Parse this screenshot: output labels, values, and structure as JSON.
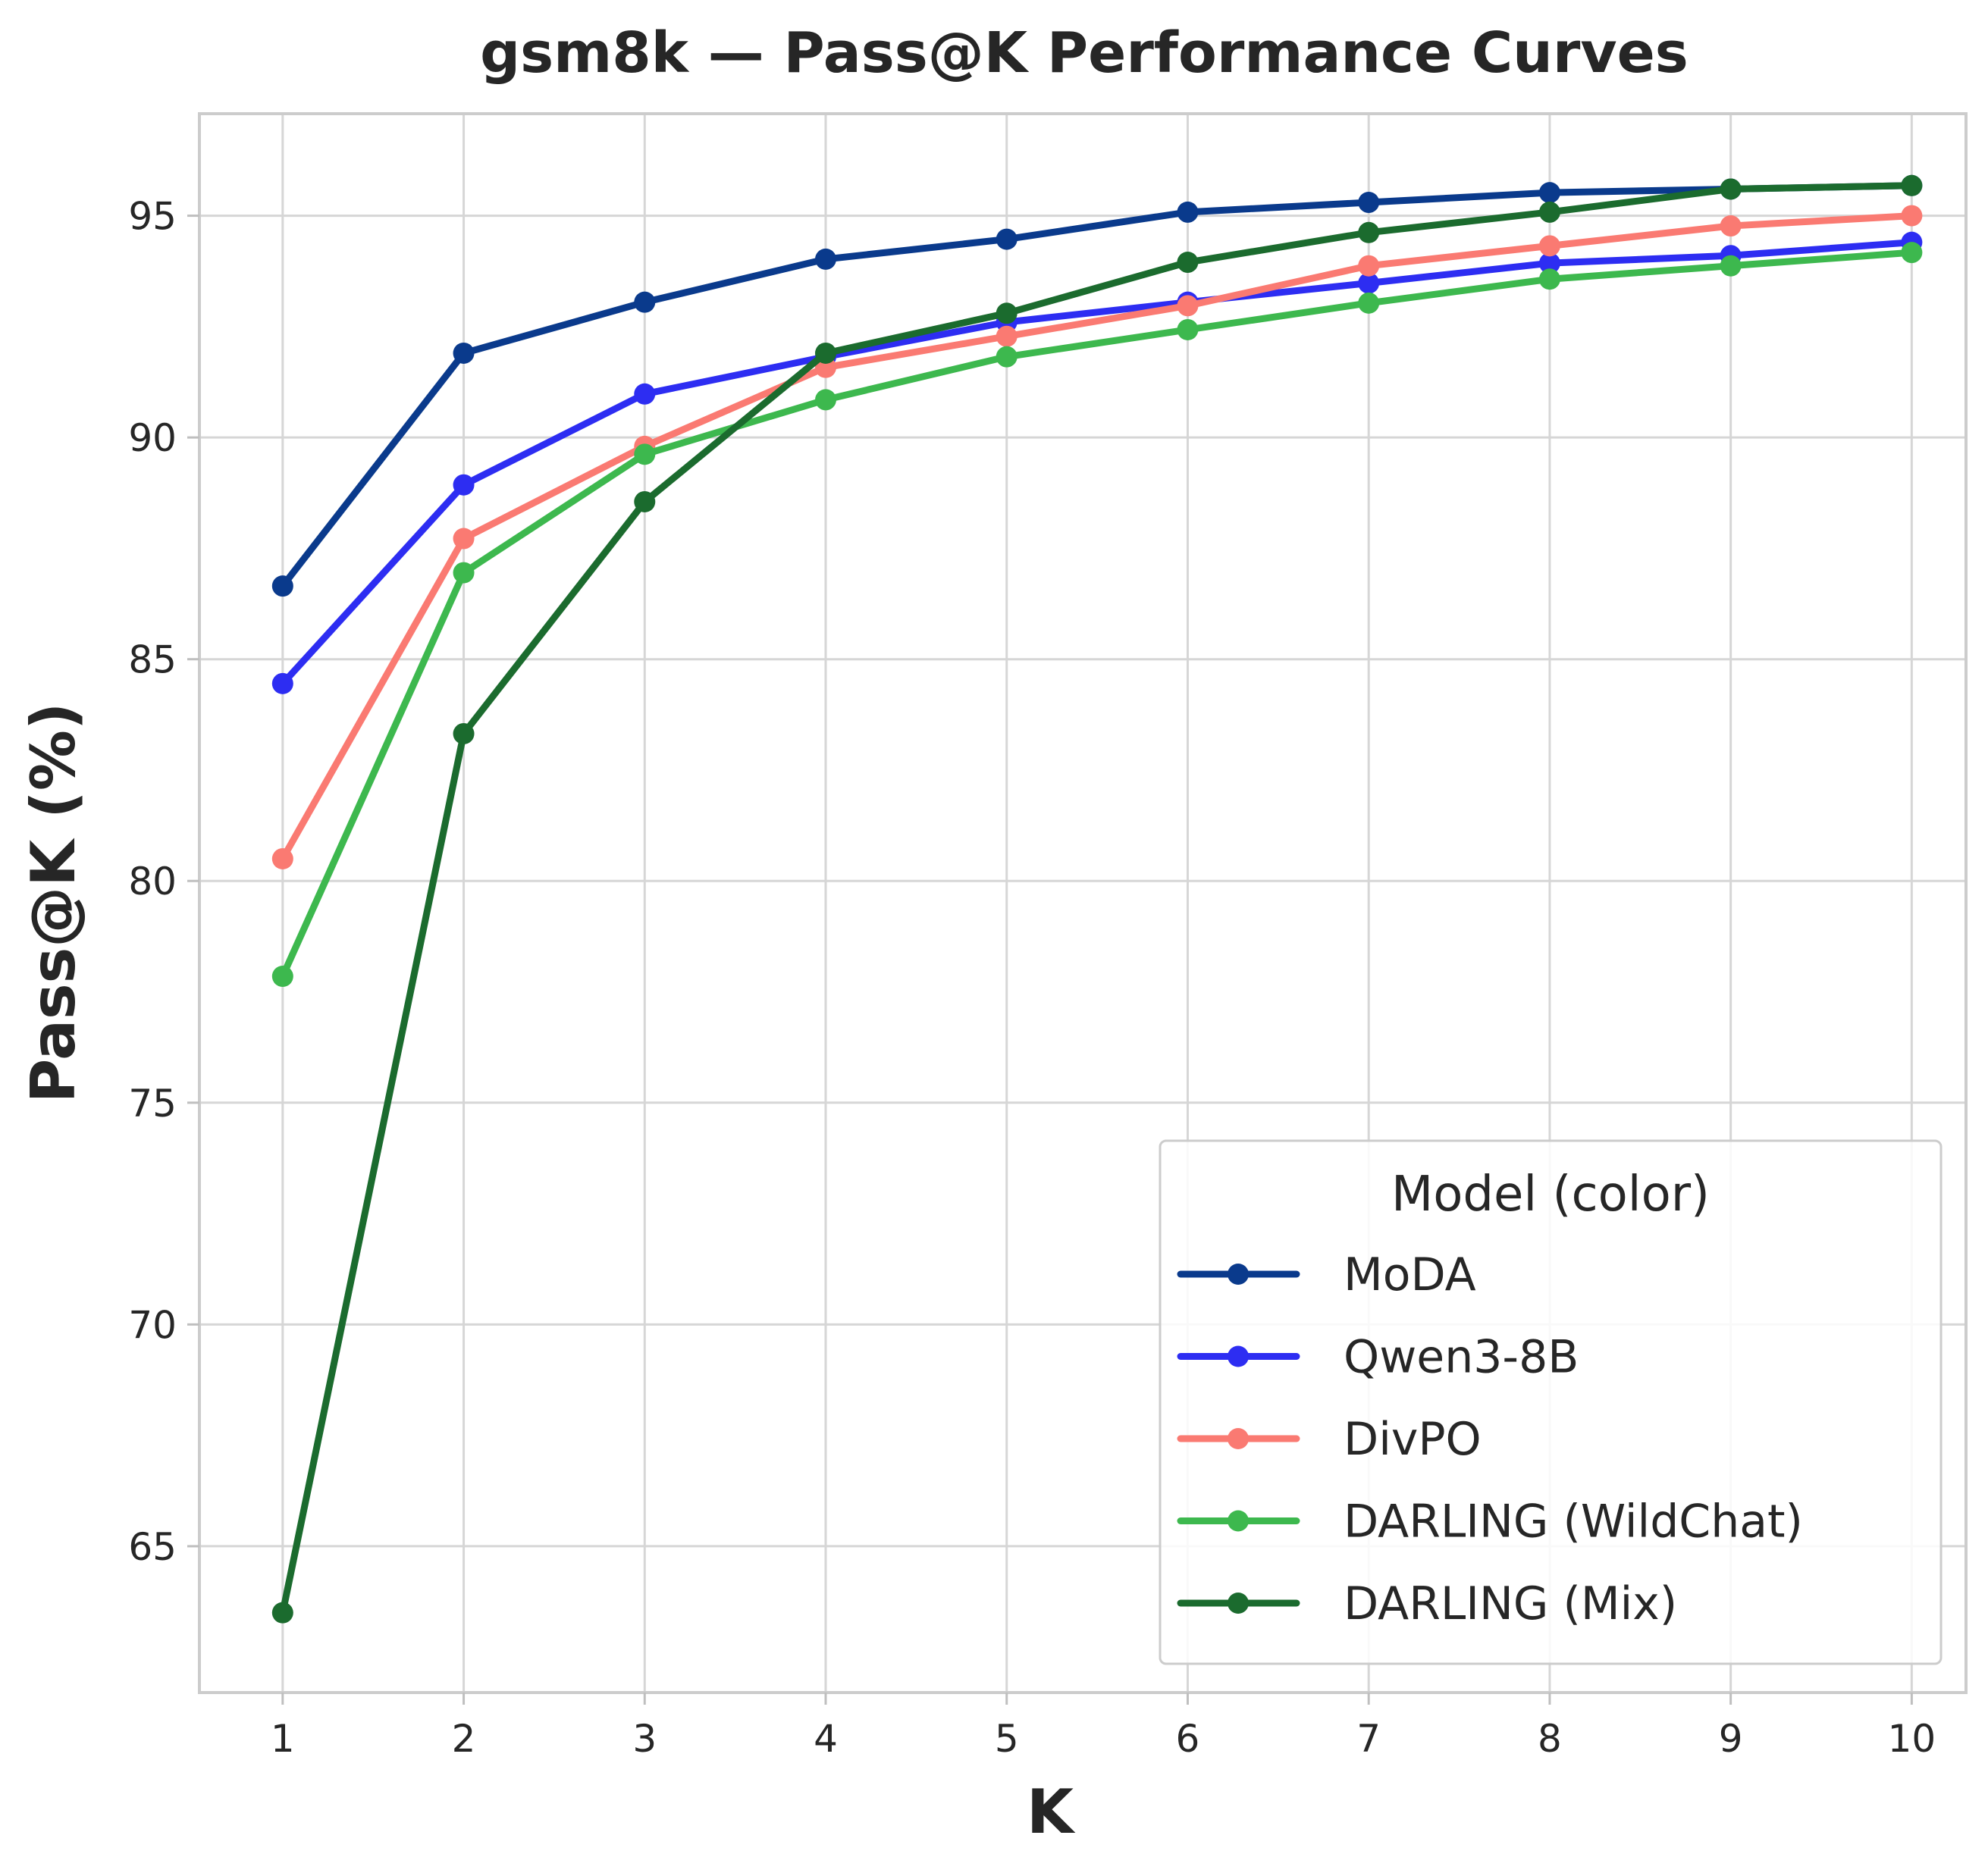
{
  "chart_data": {
    "type": "line",
    "title": "gsm8k — Pass@K Performance Curves",
    "xlabel": "K",
    "ylabel": "Pass@K (%)",
    "x": [
      1,
      2,
      3,
      4,
      5,
      6,
      7,
      8,
      9,
      10
    ],
    "xticks": [
      "1",
      "2",
      "3",
      "4",
      "5",
      "6",
      "7",
      "8",
      "9",
      "10"
    ],
    "yticks": [
      "65",
      "70",
      "75",
      "80",
      "85",
      "90",
      "95"
    ],
    "xlim": [
      0.54,
      10.3
    ],
    "ylim": [
      61.7,
      97.3
    ],
    "grid": true,
    "legend": {
      "title": "Model (color)",
      "placement": "lower-right"
    },
    "series": [
      {
        "name": "MoDA",
        "color": "#0a3a8c",
        "values": [
          86.65,
          91.9,
          93.05,
          94.02,
          94.47,
          95.08,
          95.3,
          95.52,
          95.6,
          95.68
        ]
      },
      {
        "name": "Qwen3-8B",
        "color": "#2d2df2",
        "values": [
          84.45,
          88.93,
          90.98,
          91.82,
          92.6,
          93.05,
          93.48,
          93.93,
          94.1,
          94.4
        ]
      },
      {
        "name": "DivPO",
        "color": "#fa7a72",
        "values": [
          80.5,
          87.72,
          89.8,
          91.58,
          92.28,
          92.97,
          93.87,
          94.32,
          94.77,
          95.0
        ]
      },
      {
        "name": "DARLING (WildChat)",
        "color": "#3db84e",
        "values": [
          77.85,
          86.95,
          89.62,
          90.85,
          91.82,
          92.43,
          93.03,
          93.57,
          93.87,
          94.17
        ]
      },
      {
        "name": "DARLING (Mix)",
        "color": "#1b6b2e",
        "values": [
          63.5,
          83.32,
          88.55,
          91.9,
          92.8,
          93.95,
          94.62,
          95.08,
          95.6,
          95.68
        ]
      }
    ]
  }
}
